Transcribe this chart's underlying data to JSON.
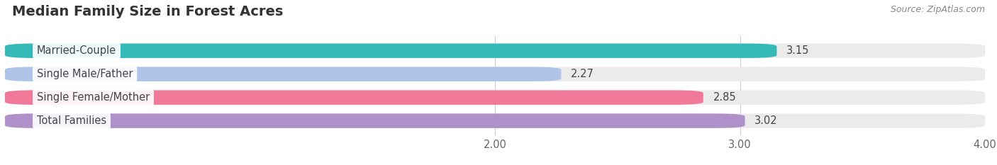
{
  "title": "Median Family Size in Forest Acres",
  "source": "Source: ZipAtlas.com",
  "categories": [
    "Married-Couple",
    "Single Male/Father",
    "Single Female/Mother",
    "Total Families"
  ],
  "values": [
    3.15,
    2.27,
    2.85,
    3.02
  ],
  "bar_colors": [
    "#35b8b8",
    "#afc4e8",
    "#f07898",
    "#b090c8"
  ],
  "bar_bg_colors": [
    "#ebebeb",
    "#ebebeb",
    "#ebebeb",
    "#ebebeb"
  ],
  "xmin": 0.0,
  "xmax": 4.0,
  "xticks": [
    2.0,
    3.0,
    4.0
  ],
  "xtick_labels": [
    "2.00",
    "3.00",
    "4.00"
  ],
  "bar_height": 0.62,
  "bar_gap": 0.38,
  "label_fontsize": 10.5,
  "value_fontsize": 10.5,
  "title_fontsize": 14,
  "source_fontsize": 9,
  "fig_bg_color": "#ffffff",
  "label_box_color": "#ffffff",
  "text_color": "#444444",
  "axis_color": "#cccccc"
}
